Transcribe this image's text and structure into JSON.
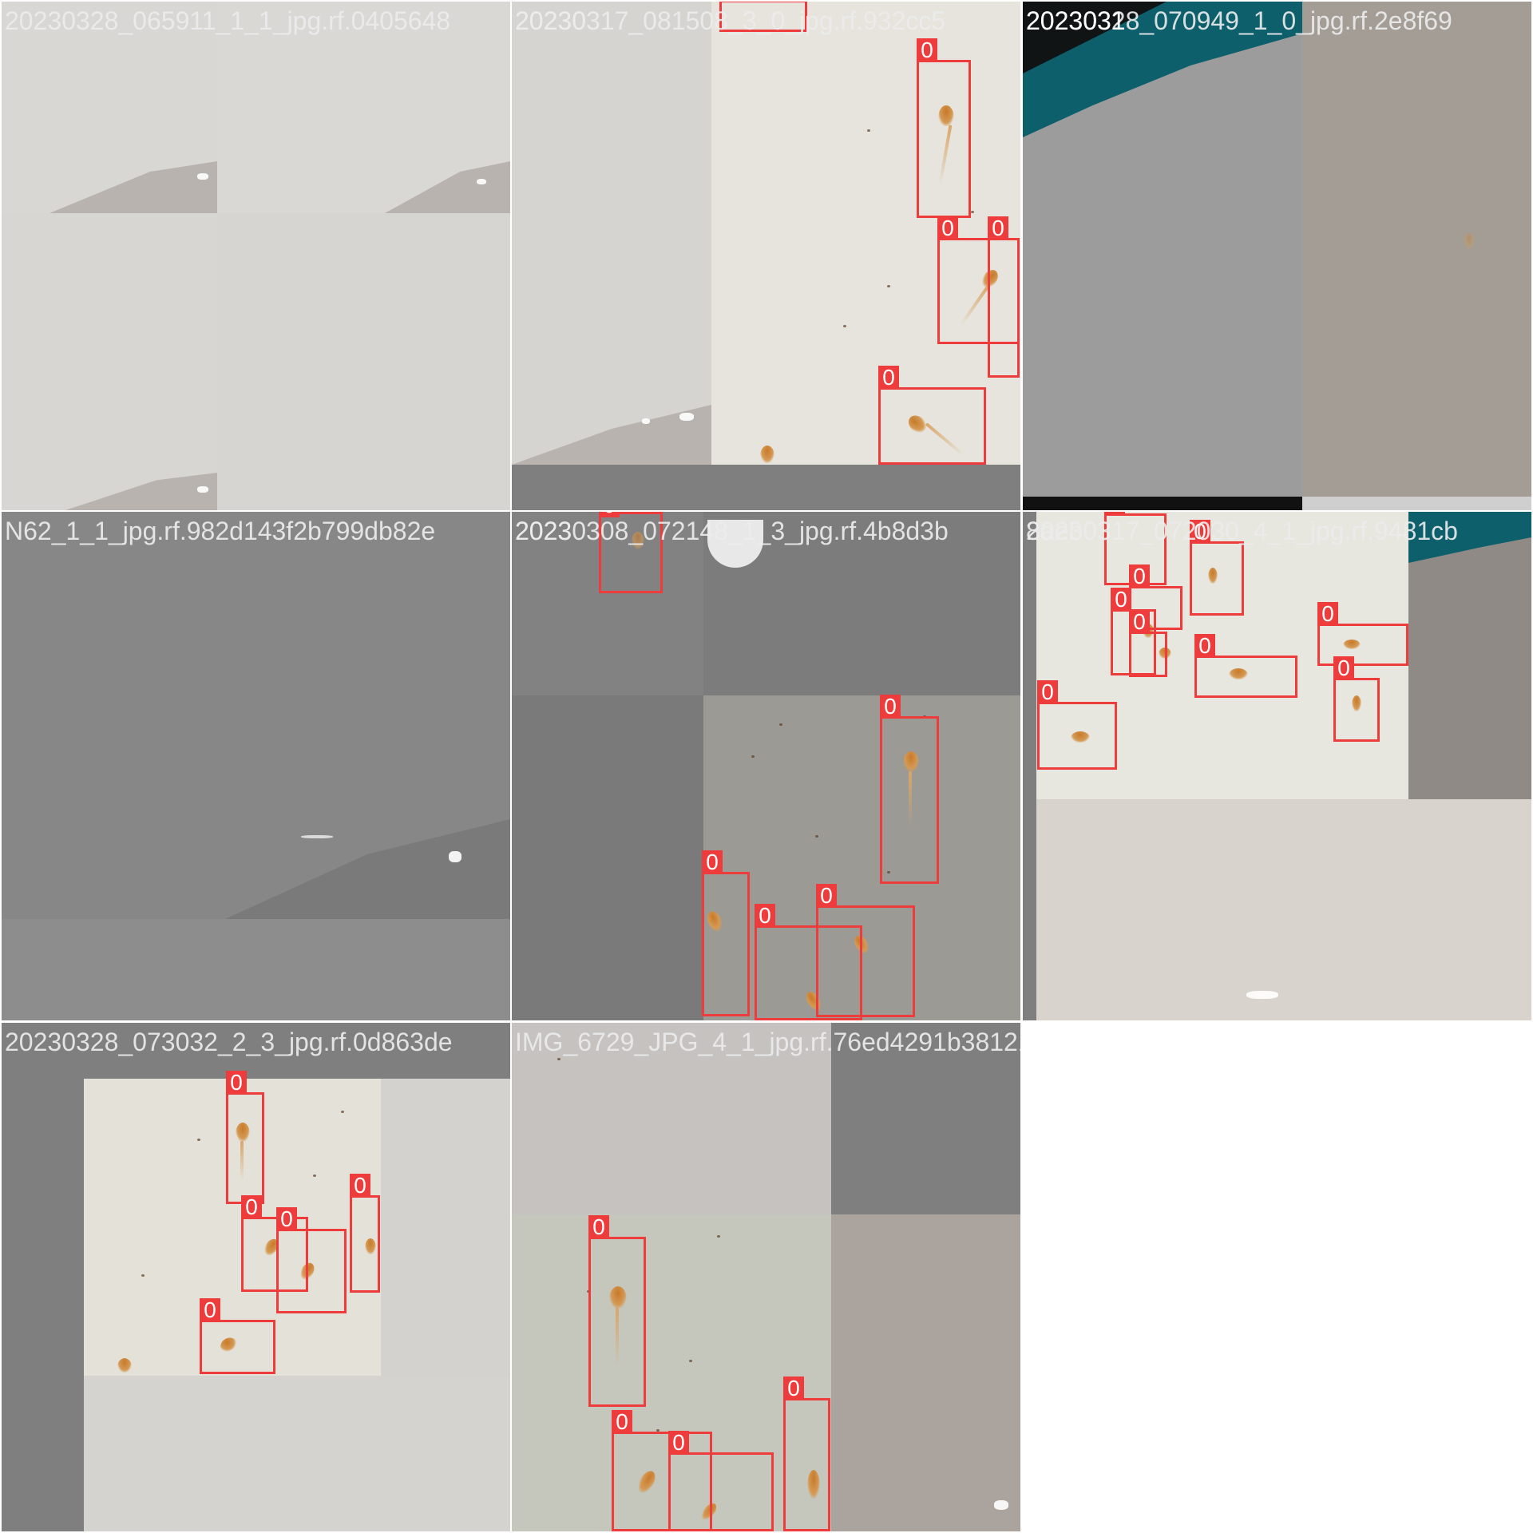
{
  "tiles": [
    {
      "title": "20230328_065911_1_1_jpg.rf.0405648",
      "overlap_title": "",
      "boxes": []
    },
    {
      "title": "20230317_081508_3_0_jpg.rf.932cc5",
      "overlap_title": "20230",
      "boxes": [
        "0",
        "0",
        "0",
        "0",
        "0",
        "0"
      ]
    },
    {
      "title": "20230328_070949_1_0_jpg.rf.2e8f69",
      "overlap_title": "2023031",
      "boxes": []
    },
    {
      "title": "N62_1_1_jpg.rf.982d143f2b799db82e",
      "overlap_title": "",
      "boxes": []
    },
    {
      "title": "20230308_072148_1_3_jpg.rf.4b8d3b",
      "overlap_title": "2023",
      "boxes": [
        "0",
        "0",
        "0",
        "0",
        "0"
      ]
    },
    {
      "title": "20230317_072030_4_1_jpg.rf.9481cb",
      "overlap_title": "8aeb",
      "boxes": [
        "0",
        "0",
        "0",
        "0",
        "0",
        "0",
        "0",
        "0",
        "0",
        "0"
      ]
    },
    {
      "title": "20230328_073032_2_3_jpg.rf.0d863de",
      "overlap_title": "",
      "boxes": [
        "0",
        "0",
        "0",
        "0",
        "0"
      ]
    },
    {
      "title": "IMG_6729_JPG_4_1_jpg.rf.76ed4291b3812164",
      "overlap_title": "",
      "boxes": [
        "0",
        "0",
        "0",
        "0",
        "0"
      ]
    }
  ],
  "box_label": "0",
  "colors": {
    "box": "#ee3b3b",
    "background": "#ffffff"
  }
}
